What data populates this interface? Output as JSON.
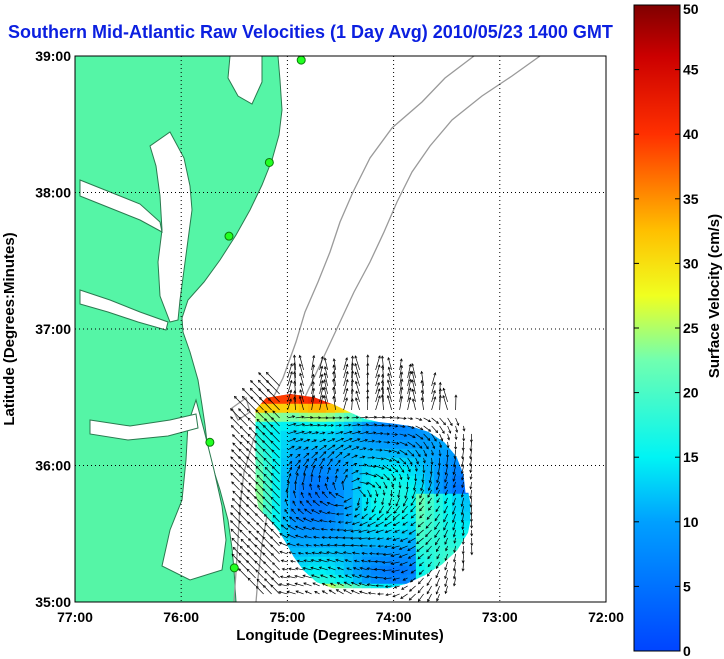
{
  "chart_data": {
    "type": "heatmap",
    "title": "Southern Mid-Atlantic Raw Velocities (1 Day Avg) 2010/05/23 1400 GMT",
    "xlabel": "Longitude (Degrees:Minutes)",
    "ylabel": "Latitude (Degrees:Minutes)",
    "x_ticks": [
      "77:00",
      "76:00",
      "75:00",
      "74:00",
      "73:00",
      "72:00"
    ],
    "y_ticks": [
      "39:00",
      "38:00",
      "37:00",
      "36:00",
      "35:00"
    ],
    "xlim": [
      -77,
      -72
    ],
    "ylim": [
      35,
      39
    ],
    "grid": true,
    "colorbar": {
      "label": "Surface Velocity (cm/s)",
      "range": [
        0,
        50
      ],
      "ticks": [
        "0",
        "5",
        "10",
        "15",
        "20",
        "25",
        "30",
        "35",
        "40",
        "45",
        "50"
      ]
    },
    "velocity_field": {
      "center_lon": -74.4,
      "center_lat": 35.8,
      "region": "semicircular HF radar coverage off Cape Hatteras",
      "typical_speed_cm_s": 12,
      "max_speed_cm_s": 45
    },
    "stations": [
      {
        "lon": -74.87,
        "lat": 38.97
      },
      {
        "lon": -75.17,
        "lat": 38.22
      },
      {
        "lon": -75.55,
        "lat": 37.68
      },
      {
        "lon": -75.73,
        "lat": 36.17
      },
      {
        "lon": -75.5,
        "lat": 35.25
      }
    ]
  },
  "colors": {
    "land": "#55f5a6",
    "land_edge": "#2a7a4f",
    "bathymetry": "#9a9a9a",
    "title": "#0b1fe0",
    "station": "#22ff22"
  }
}
